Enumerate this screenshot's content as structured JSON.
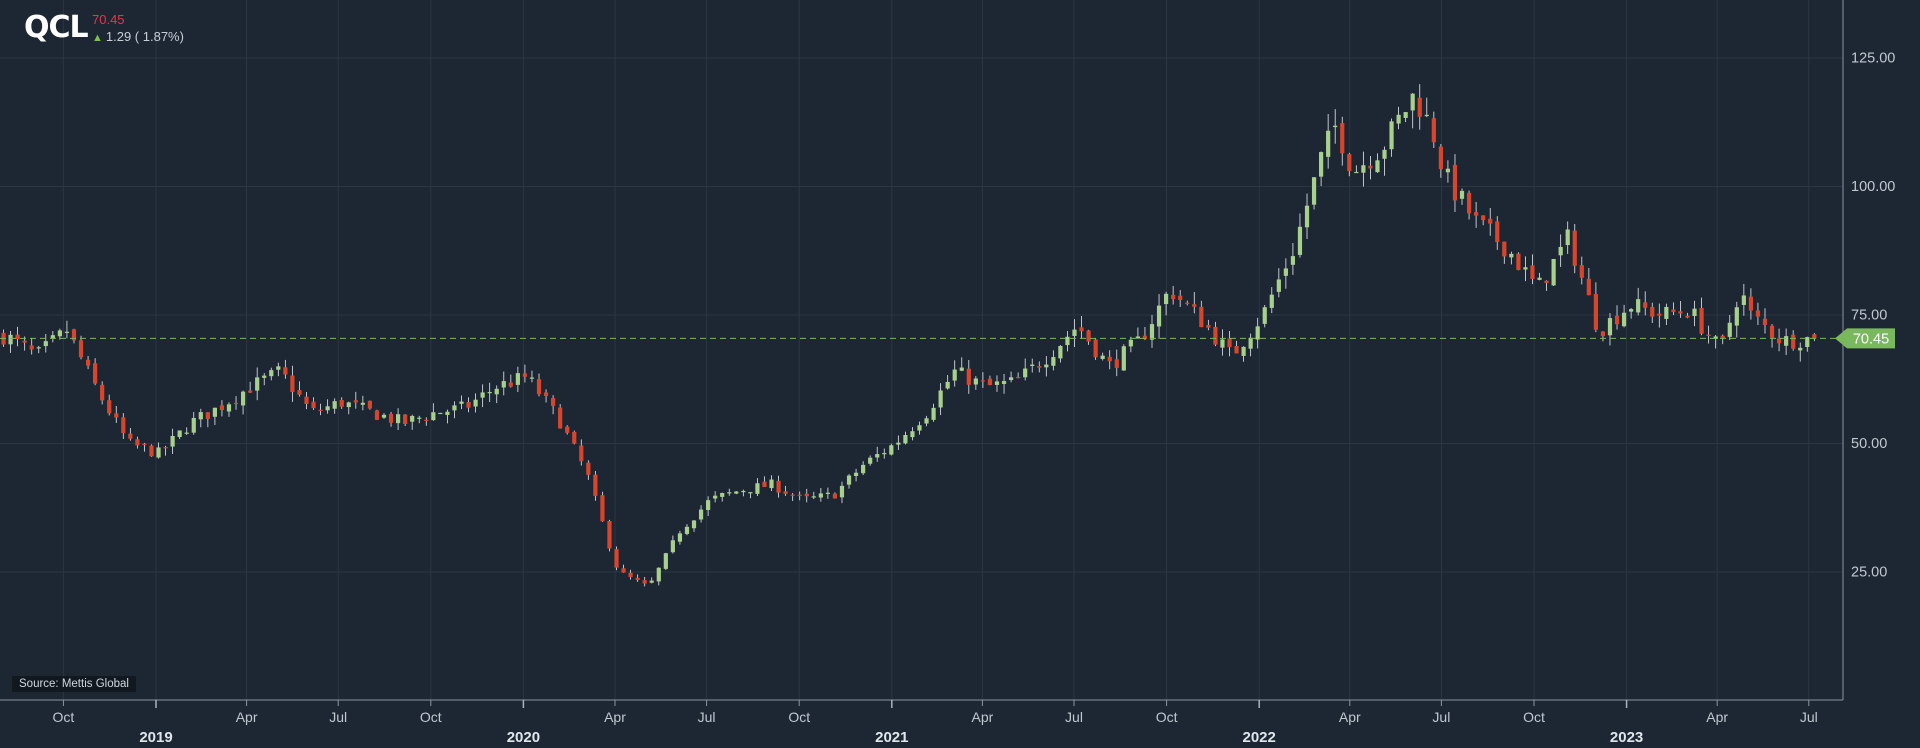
{
  "header": {
    "ticker": "QCL",
    "last": "70.45",
    "change_text": "1.29 ( 1.87%)",
    "change_direction": "up"
  },
  "source": "Source: Mettis Global",
  "colors": {
    "background": "#1d2733",
    "up_candle": "#a8d08d",
    "down_candle": "#d9452b",
    "last_price": "#7ab85e",
    "grid": "#2a3643"
  },
  "chart_data": {
    "type": "candlestick",
    "title": "",
    "xlabel": "",
    "ylabel": "",
    "ylim": [
      0,
      135
    ],
    "xlim": [
      "2018-07-30",
      "2023-08-04"
    ],
    "y_ticks": [
      "25.00",
      "50.00",
      "75.00",
      "100.00",
      "125.00"
    ],
    "month_ticks": [
      {
        "date": "2018-10-01",
        "label": "Oct"
      },
      {
        "date": "2019-04-01",
        "label": "Apr"
      },
      {
        "date": "2019-07-01",
        "label": "Jul"
      },
      {
        "date": "2019-10-01",
        "label": "Oct"
      },
      {
        "date": "2020-04-01",
        "label": "Apr"
      },
      {
        "date": "2020-07-01",
        "label": "Jul"
      },
      {
        "date": "2020-10-01",
        "label": "Oct"
      },
      {
        "date": "2021-04-01",
        "label": "Apr"
      },
      {
        "date": "2021-07-01",
        "label": "Jul"
      },
      {
        "date": "2021-10-01",
        "label": "Oct"
      },
      {
        "date": "2022-04-01",
        "label": "Apr"
      },
      {
        "date": "2022-07-01",
        "label": "Jul"
      },
      {
        "date": "2022-10-01",
        "label": "Oct"
      },
      {
        "date": "2023-04-01",
        "label": "Apr"
      },
      {
        "date": "2023-07-01",
        "label": "Jul"
      }
    ],
    "year_ticks": [
      {
        "date": "2019-01-01",
        "label": "2019"
      },
      {
        "date": "2020-01-01",
        "label": "2020"
      },
      {
        "date": "2021-01-01",
        "label": "2021"
      },
      {
        "date": "2022-01-01",
        "label": "2022"
      },
      {
        "date": "2023-01-01",
        "label": "2023"
      }
    ],
    "last_price": 70.45,
    "last_price_label": "70.45",
    "grid": true,
    "candle_interval": "weekly",
    "close_anchors": [
      {
        "date": "2018-08-01",
        "close": 71
      },
      {
        "date": "2018-09-01",
        "close": 67
      },
      {
        "date": "2018-10-01",
        "close": 72
      },
      {
        "date": "2018-11-01",
        "close": 60
      },
      {
        "date": "2018-12-01",
        "close": 50
      },
      {
        "date": "2019-01-01",
        "close": 48
      },
      {
        "date": "2019-02-01",
        "close": 54
      },
      {
        "date": "2019-03-01",
        "close": 57
      },
      {
        "date": "2019-04-01",
        "close": 61
      },
      {
        "date": "2019-05-01",
        "close": 64
      },
      {
        "date": "2019-06-01",
        "close": 56
      },
      {
        "date": "2019-07-01",
        "close": 58
      },
      {
        "date": "2019-08-01",
        "close": 56
      },
      {
        "date": "2019-09-01",
        "close": 54
      },
      {
        "date": "2019-10-01",
        "close": 56
      },
      {
        "date": "2019-11-01",
        "close": 57
      },
      {
        "date": "2019-12-01",
        "close": 61
      },
      {
        "date": "2020-01-01",
        "close": 63
      },
      {
        "date": "2020-02-01",
        "close": 55
      },
      {
        "date": "2020-03-01",
        "close": 44
      },
      {
        "date": "2020-03-20",
        "close": 32
      },
      {
        "date": "2020-04-01",
        "close": 25
      },
      {
        "date": "2020-05-01",
        "close": 22
      },
      {
        "date": "2020-06-01",
        "close": 33
      },
      {
        "date": "2020-07-01",
        "close": 39
      },
      {
        "date": "2020-08-01",
        "close": 41
      },
      {
        "date": "2020-09-01",
        "close": 42
      },
      {
        "date": "2020-10-01",
        "close": 39
      },
      {
        "date": "2020-11-01",
        "close": 40
      },
      {
        "date": "2020-12-01",
        "close": 46
      },
      {
        "date": "2021-01-01",
        "close": 50
      },
      {
        "date": "2021-02-01",
        "close": 56
      },
      {
        "date": "2021-03-01",
        "close": 64
      },
      {
        "date": "2021-04-01",
        "close": 61
      },
      {
        "date": "2021-05-01",
        "close": 62
      },
      {
        "date": "2021-06-01",
        "close": 67
      },
      {
        "date": "2021-07-01",
        "close": 73
      },
      {
        "date": "2021-08-01",
        "close": 65
      },
      {
        "date": "2021-09-01",
        "close": 70
      },
      {
        "date": "2021-10-01",
        "close": 80
      },
      {
        "date": "2021-11-01",
        "close": 74
      },
      {
        "date": "2021-12-01",
        "close": 67
      },
      {
        "date": "2022-01-01",
        "close": 75
      },
      {
        "date": "2022-02-01",
        "close": 88
      },
      {
        "date": "2022-03-01",
        "close": 106
      },
      {
        "date": "2022-03-15",
        "close": 112
      },
      {
        "date": "2022-04-01",
        "close": 103
      },
      {
        "date": "2022-05-01",
        "close": 108
      },
      {
        "date": "2022-06-01",
        "close": 118
      },
      {
        "date": "2022-06-20",
        "close": 110
      },
      {
        "date": "2022-07-01",
        "close": 102
      },
      {
        "date": "2022-08-01",
        "close": 93
      },
      {
        "date": "2022-09-01",
        "close": 88
      },
      {
        "date": "2022-10-01",
        "close": 80
      },
      {
        "date": "2022-11-01",
        "close": 90
      },
      {
        "date": "2022-12-01",
        "close": 72
      },
      {
        "date": "2023-01-01",
        "close": 77
      },
      {
        "date": "2023-02-01",
        "close": 75
      },
      {
        "date": "2023-03-01",
        "close": 76
      },
      {
        "date": "2023-04-01",
        "close": 68
      },
      {
        "date": "2023-04-20",
        "close": 80
      },
      {
        "date": "2023-05-01",
        "close": 75
      },
      {
        "date": "2023-06-01",
        "close": 70
      },
      {
        "date": "2023-07-01",
        "close": 70.45
      }
    ]
  }
}
